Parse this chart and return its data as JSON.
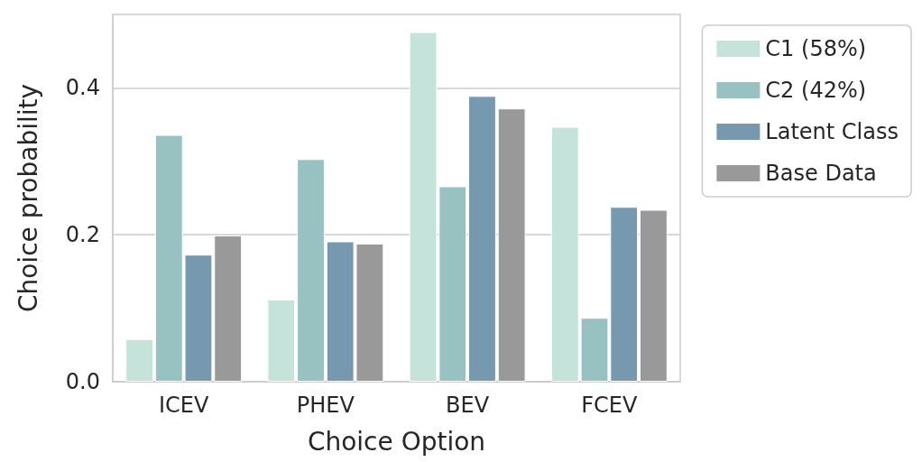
{
  "chart_data": {
    "type": "bar",
    "xlabel": "Choice Option",
    "ylabel": "Choice probability",
    "categories": [
      "ICEV",
      "PHEV",
      "BEV",
      "FCEV"
    ],
    "series": [
      {
        "name": "C1 (58%)",
        "color": "#c6e3db",
        "values": [
          0.058,
          0.112,
          0.476,
          0.347
        ]
      },
      {
        "name": "C2 (42%)",
        "color": "#98c1c1",
        "values": [
          0.336,
          0.303,
          0.266,
          0.087
        ]
      },
      {
        "name": "Latent Class",
        "color": "#7799af",
        "values": [
          0.173,
          0.191,
          0.389,
          0.238
        ]
      },
      {
        "name": "Base Data",
        "color": "#999999",
        "values": [
          0.199,
          0.188,
          0.372,
          0.234
        ]
      }
    ],
    "ylim": [
      0,
      0.5
    ],
    "yticks": [
      {
        "value": 0,
        "label": "0.0"
      },
      {
        "value": 0.2,
        "label": "0.2"
      },
      {
        "value": 0.4,
        "label": "0.4"
      }
    ],
    "grid": "y",
    "legend": "top right"
  }
}
